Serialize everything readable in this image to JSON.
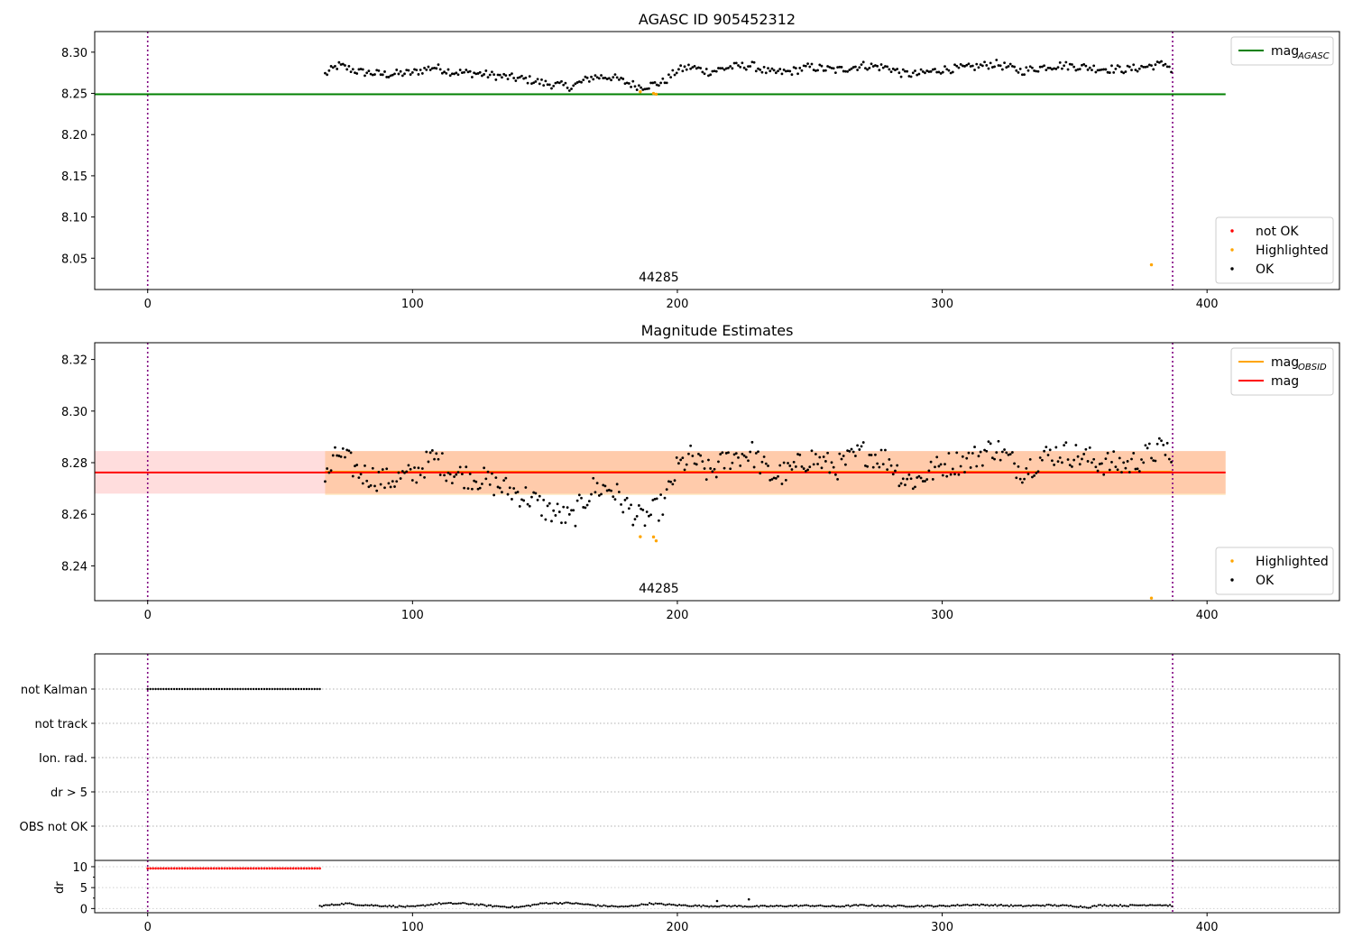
{
  "chart_data": [
    {
      "type": "scatter",
      "title": "AGASC ID 905452312",
      "xlim": [
        -20,
        450
      ],
      "ylim": [
        8.012,
        8.325
      ],
      "xticks": [
        0,
        100,
        200,
        300,
        400
      ],
      "yticks": [
        8.05,
        8.1,
        8.15,
        8.2,
        8.25,
        8.3
      ],
      "vlines": [
        0,
        387
      ],
      "annotation": {
        "text": "44285",
        "x": 193,
        "y": 8.022
      },
      "hlines": [
        {
          "name": "mag_AGASC",
          "y": 8.249,
          "xmin": -20,
          "xmax": 407,
          "color": "#008000"
        }
      ],
      "series": [
        {
          "name": "not OK",
          "color": "#ff0000",
          "points": []
        },
        {
          "name": "Highlighted",
          "color": "#ffa500",
          "points": [
            [
              186,
              8.252
            ],
            [
              191,
              8.25
            ],
            [
              192,
              8.249
            ],
            [
              379,
              8.042
            ]
          ]
        },
        {
          "name": "OK",
          "color": "#000000",
          "baseline": [
            [
              67,
              8.273
            ],
            [
              72,
              8.284
            ],
            [
              80,
              8.276
            ],
            [
              90,
              8.273
            ],
            [
              100,
              8.275
            ],
            [
              108,
              8.282
            ],
            [
              115,
              8.276
            ],
            [
              125,
              8.274
            ],
            [
              135,
              8.27
            ],
            [
              145,
              8.266
            ],
            [
              150,
              8.262
            ],
            [
              160,
              8.258
            ],
            [
              168,
              8.27
            ],
            [
              175,
              8.27
            ],
            [
              180,
              8.264
            ],
            [
              186,
              8.258
            ],
            [
              190,
              8.26
            ],
            [
              195,
              8.264
            ],
            [
              200,
              8.278
            ],
            [
              205,
              8.282
            ],
            [
              212,
              8.276
            ],
            [
              220,
              8.282
            ],
            [
              228,
              8.284
            ],
            [
              235,
              8.275
            ],
            [
              242,
              8.276
            ],
            [
              250,
              8.282
            ],
            [
              260,
              8.278
            ],
            [
              270,
              8.284
            ],
            [
              280,
              8.281
            ],
            [
              285,
              8.274
            ],
            [
              290,
              8.273
            ],
            [
              300,
              8.279
            ],
            [
              310,
              8.281
            ],
            [
              320,
              8.286
            ],
            [
              330,
              8.277
            ],
            [
              340,
              8.283
            ],
            [
              345,
              8.284
            ],
            [
              350,
              8.283
            ],
            [
              360,
              8.28
            ],
            [
              370,
              8.279
            ],
            [
              380,
              8.284
            ],
            [
              385,
              8.286
            ],
            [
              387,
              8.275
            ]
          ]
        }
      ],
      "legends": [
        {
          "placement": "upper-right",
          "entries": [
            {
              "label": "mag",
              "sub": "AGASC",
              "kind": "line",
              "color": "#008000"
            }
          ]
        },
        {
          "placement": "lower-right",
          "entries": [
            {
              "label": "not OK",
              "kind": "dot",
              "color": "#ff0000"
            },
            {
              "label": "Highlighted",
              "kind": "dot",
              "color": "#ffa500"
            },
            {
              "label": "OK",
              "kind": "dot",
              "color": "#000000"
            }
          ]
        }
      ]
    },
    {
      "type": "scatter",
      "title": "Magnitude Estimates",
      "xlim": [
        -20,
        450
      ],
      "ylim": [
        8.2265,
        8.3265
      ],
      "xticks": [
        0,
        100,
        200,
        300,
        400
      ],
      "yticks": [
        8.24,
        8.26,
        8.28,
        8.3,
        8.32
      ],
      "vlines": [
        0,
        387
      ],
      "annotation": {
        "text": "44285",
        "x": 193,
        "y": 8.2295
      },
      "bands": [
        {
          "name": "mag_OBSID range",
          "y0": 8.2675,
          "y1": 8.2845,
          "xmin": 67,
          "xmax": 407,
          "color": "#ffa500",
          "opacity": 0.25
        },
        {
          "name": "mag range",
          "y0": 8.268,
          "y1": 8.2845,
          "xmin": -20,
          "xmax": 407,
          "color": "#ff6666",
          "opacity": 0.22
        }
      ],
      "hlines": [
        {
          "name": "mag_OBSID",
          "y": 8.2765,
          "xmin": 67,
          "xmax": 387,
          "color": "#ffa500"
        },
        {
          "name": "mag",
          "y": 8.2762,
          "xmin": -20,
          "xmax": 407,
          "color": "#ff0000"
        }
      ],
      "series": [
        {
          "name": "Highlighted",
          "color": "#ffa500",
          "points": [
            [
              186,
              8.2513
            ],
            [
              191,
              8.2512
            ],
            [
              192,
              8.2497
            ],
            [
              379,
              8.2275
            ]
          ]
        },
        {
          "name": "OK",
          "color": "#000000",
          "baseline": [
            [
              67,
              8.273
            ],
            [
              72,
              8.284
            ],
            [
              80,
              8.276
            ],
            [
              90,
              8.273
            ],
            [
              100,
              8.275
            ],
            [
              108,
              8.282
            ],
            [
              115,
              8.276
            ],
            [
              125,
              8.274
            ],
            [
              135,
              8.27
            ],
            [
              145,
              8.266
            ],
            [
              150,
              8.262
            ],
            [
              160,
              8.258
            ],
            [
              168,
              8.27
            ],
            [
              175,
              8.27
            ],
            [
              180,
              8.264
            ],
            [
              186,
              8.258
            ],
            [
              190,
              8.26
            ],
            [
              195,
              8.264
            ],
            [
              200,
              8.278
            ],
            [
              205,
              8.282
            ],
            [
              212,
              8.276
            ],
            [
              220,
              8.282
            ],
            [
              228,
              8.284
            ],
            [
              235,
              8.275
            ],
            [
              242,
              8.276
            ],
            [
              250,
              8.282
            ],
            [
              260,
              8.278
            ],
            [
              270,
              8.284
            ],
            [
              280,
              8.281
            ],
            [
              285,
              8.274
            ],
            [
              290,
              8.273
            ],
            [
              300,
              8.279
            ],
            [
              310,
              8.281
            ],
            [
              320,
              8.286
            ],
            [
              330,
              8.277
            ],
            [
              340,
              8.283
            ],
            [
              345,
              8.284
            ],
            [
              350,
              8.283
            ],
            [
              360,
              8.28
            ],
            [
              370,
              8.279
            ],
            [
              380,
              8.284
            ],
            [
              385,
              8.286
            ],
            [
              387,
              8.275
            ]
          ]
        }
      ],
      "legends": [
        {
          "placement": "upper-right",
          "entries": [
            {
              "label": "mag",
              "sub": "OBSID",
              "kind": "line",
              "color": "#ffa500"
            },
            {
              "label": "mag",
              "kind": "line",
              "color": "#ff0000"
            }
          ]
        },
        {
          "placement": "lower-right",
          "entries": [
            {
              "label": "Highlighted",
              "kind": "dot",
              "color": "#ffa500"
            },
            {
              "label": "OK",
              "kind": "dot",
              "color": "#000000"
            }
          ]
        }
      ]
    },
    {
      "type": "scatter",
      "title": "",
      "xlim": [
        -20,
        450
      ],
      "vlines": [
        0,
        387
      ],
      "flag_rows": [
        {
          "label": "not Kalman",
          "xmin": 0,
          "xmax": 65
        },
        {
          "label": "not track"
        },
        {
          "label": "Ion. rad."
        },
        {
          "label": "dr > 5"
        },
        {
          "label": "OBS not OK"
        }
      ]
    },
    {
      "type": "scatter",
      "title": "",
      "xlim": [
        -20,
        450
      ],
      "ylim": [
        -1,
        11.5
      ],
      "ylabel": "dr",
      "xticks": [
        0,
        100,
        200,
        300,
        400
      ],
      "yticks": [
        0,
        5,
        10
      ],
      "vlines": [
        0,
        387
      ],
      "series": [
        {
          "name": "dr > 5",
          "color": "#ff0000",
          "xmin": 0,
          "xmax": 65,
          "y": 9.6
        },
        {
          "name": "OK",
          "color": "#000000",
          "baseline": [
            [
              65,
              0.6
            ],
            [
              75,
              1.2
            ],
            [
              80,
              0.9
            ],
            [
              90,
              0.6
            ],
            [
              100,
              0.4
            ],
            [
              110,
              1.2
            ],
            [
              120,
              1.2
            ],
            [
              130,
              0.6
            ],
            [
              140,
              0.3
            ],
            [
              150,
              1.3
            ],
            [
              160,
              1.3
            ],
            [
              170,
              0.7
            ],
            [
              180,
              0.4
            ],
            [
              190,
              1.2
            ],
            [
              200,
              0.8
            ],
            [
              210,
              0.6
            ],
            [
              220,
              0.6
            ],
            [
              230,
              0.5
            ],
            [
              240,
              0.6
            ],
            [
              250,
              0.7
            ],
            [
              260,
              0.5
            ],
            [
              270,
              0.8
            ],
            [
              280,
              0.6
            ],
            [
              300,
              0.6
            ],
            [
              310,
              0.9
            ],
            [
              320,
              0.8
            ],
            [
              330,
              0.6
            ],
            [
              340,
              0.8
            ],
            [
              350,
              0.6
            ],
            [
              355,
              0.3
            ],
            [
              360,
              0.8
            ],
            [
              370,
              0.7
            ],
            [
              380,
              0.9
            ],
            [
              387,
              0.7
            ]
          ],
          "outliers": [
            [
              215,
              1.8
            ],
            [
              227,
              2.2
            ]
          ]
        }
      ]
    }
  ]
}
